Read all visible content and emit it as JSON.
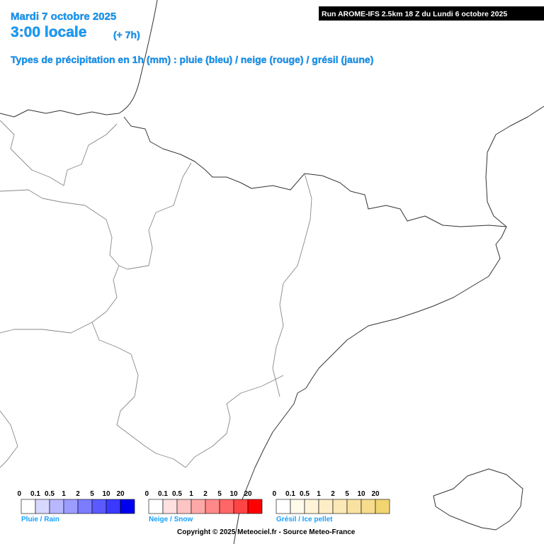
{
  "header": {
    "date": "Mardi 7 octobre 2025",
    "time": "3:00 locale",
    "offset": "(+ 7h)",
    "subtitle": "Types de précipitation en 1h (mm) : pluie (bleu) / neige (rouge) / grésil (jaune)",
    "run": "Run AROME-IFS 2.5km 18 Z du Lundi 6 octobre 2025"
  },
  "legends": [
    {
      "name": "Pluie / Rain",
      "ticks": [
        0,
        0.1,
        0.5,
        1,
        2,
        5,
        10,
        20
      ],
      "colors": [
        "#ffffff",
        "#d8d8ff",
        "#b8b8ff",
        "#9c9cff",
        "#7c7cff",
        "#5a5aff",
        "#3a3aff",
        "#0000f0"
      ]
    },
    {
      "name": "Neige / Snow",
      "ticks": [
        0,
        0.1,
        0.5,
        1,
        2,
        5,
        10,
        20
      ],
      "colors": [
        "#ffffff",
        "#ffe0e0",
        "#ffc4c4",
        "#ffa8a8",
        "#ff8888",
        "#ff6666",
        "#ff4444",
        "#ff0000"
      ]
    },
    {
      "name": "Grésil / Ice pellet",
      "ticks": [
        0,
        0.1,
        0.5,
        1,
        2,
        5,
        10,
        20
      ],
      "colors": [
        "#ffffff",
        "#fffaea",
        "#fff4d8",
        "#fdeec8",
        "#fbe8b4",
        "#f9e2a0",
        "#f6dc8c",
        "#f2d470"
      ]
    }
  ],
  "footer": {
    "copyright": "Copyright © 2025 Meteociel.fr - Source Meteo-France"
  }
}
